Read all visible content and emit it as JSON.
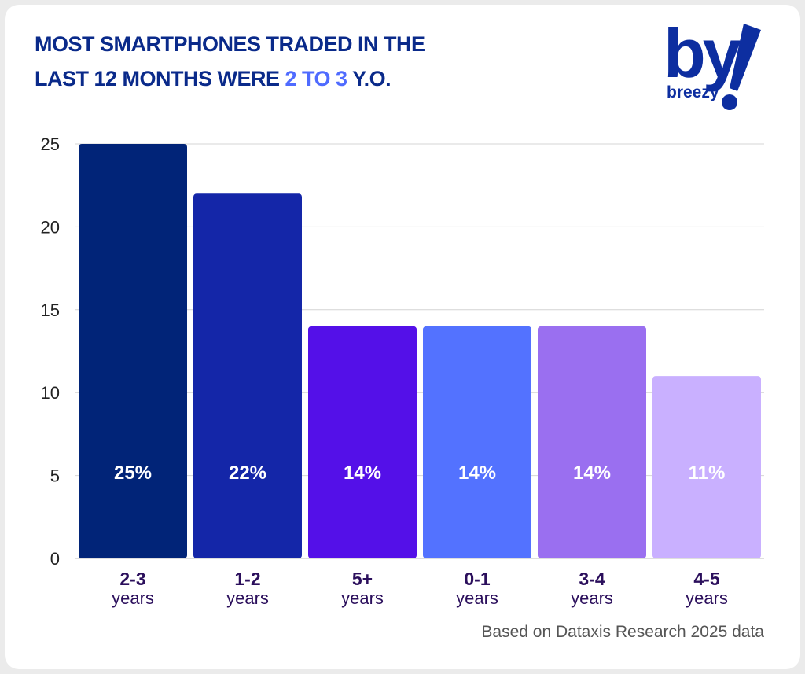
{
  "header": {
    "title_line1": "MOST SMARTPHONES TRADED IN THE",
    "title_line2_prefix": "LAST 12 MONTHS WERE ",
    "title_line2_highlight": "2 TO 3",
    "title_line2_suffix": " Y.O."
  },
  "logo": {
    "mark": "by",
    "wordmark": "breezy",
    "colors": {
      "primary": "#0d2ea0"
    }
  },
  "source": "Based on Dataxis Research 2025 data",
  "chart_data": {
    "type": "bar",
    "title": "",
    "xlabel": "",
    "ylabel": "",
    "ylim": [
      0,
      25
    ],
    "yticks": [
      0,
      5,
      10,
      15,
      20,
      25
    ],
    "grid": true,
    "legend": "none",
    "categories": [
      {
        "top": "2-3",
        "bottom": "years"
      },
      {
        "top": "1-2",
        "bottom": "years"
      },
      {
        "top": "5+",
        "bottom": "years"
      },
      {
        "top": "0-1",
        "bottom": "years"
      },
      {
        "top": "3-4",
        "bottom": "years"
      },
      {
        "top": "4-5",
        "bottom": "years"
      }
    ],
    "values": [
      25,
      22,
      14,
      14,
      14,
      11
    ],
    "data_labels": [
      "25%",
      "22%",
      "14%",
      "14%",
      "14%",
      "11%"
    ],
    "colors": [
      "#012478",
      "#1426a8",
      "#5410e8",
      "#5372ff",
      "#9a6ff0",
      "#c9b0ff"
    ],
    "label_colors": [
      "#ffffff",
      "#ffffff",
      "#ffffff",
      "#ffffff",
      "#ffffff",
      "#ffffff"
    ]
  }
}
